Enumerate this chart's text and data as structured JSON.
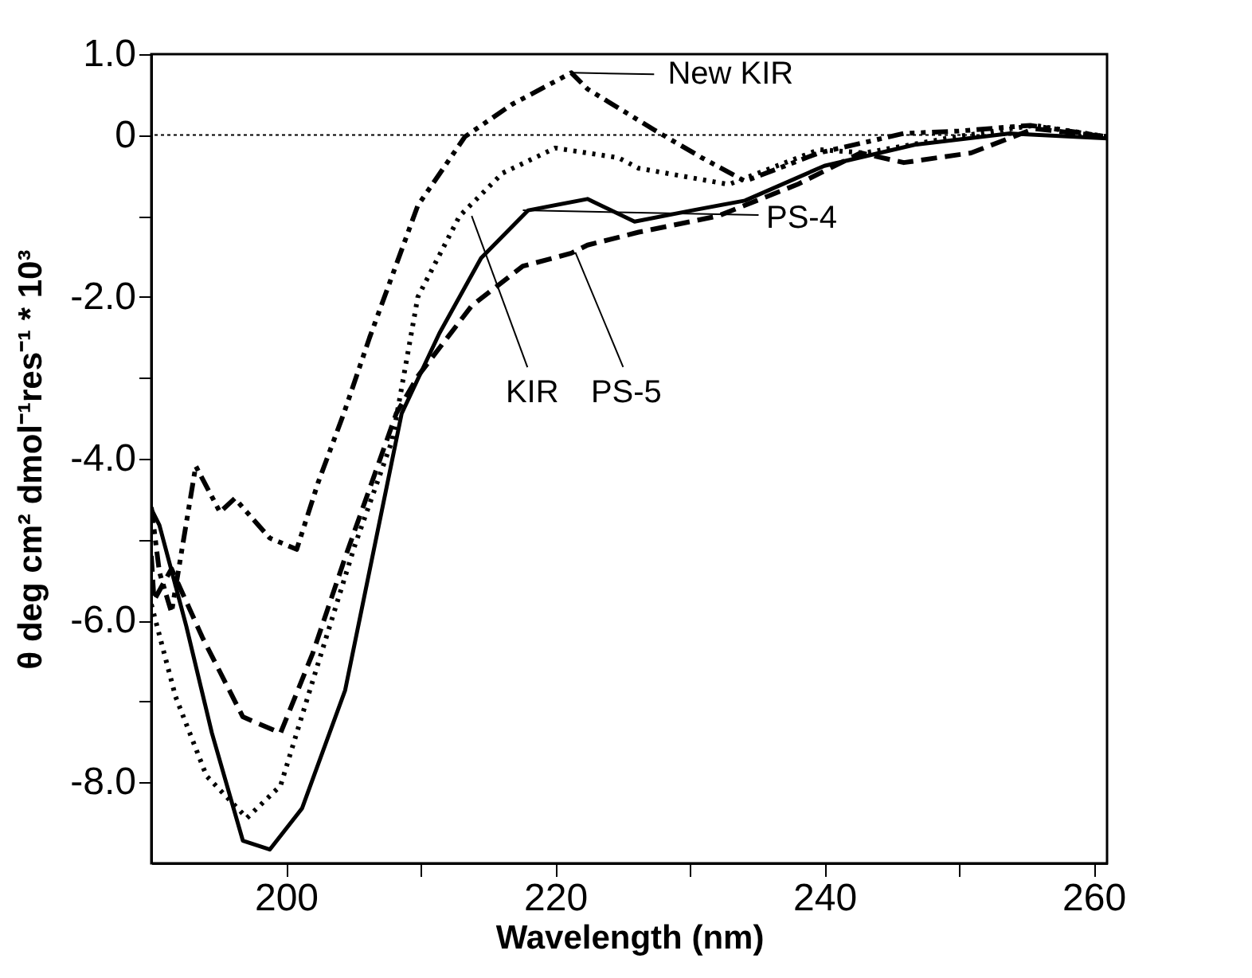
{
  "chart_data": {
    "type": "line",
    "xlabel": "Wavelength (nm)",
    "ylabel": "θ deg cm² dmol⁻¹res⁻¹ * 10³",
    "xlim": [
      190,
      261
    ],
    "ylim": [
      -9,
      1
    ],
    "xticks": [
      200,
      {
        "value": 210,
        "label": null
      },
      220,
      {
        "value": 230,
        "label": null
      },
      240,
      {
        "value": 250,
        "label": null
      },
      260
    ],
    "yticks": [
      {
        "value": 1,
        "label": "1.0"
      },
      0,
      {
        "value": -1,
        "label": null
      },
      {
        "value": -2,
        "label": "-2.0"
      },
      {
        "value": -3,
        "label": null
      },
      {
        "value": -4,
        "label": "-4.0"
      },
      {
        "value": -5,
        "label": null
      },
      {
        "value": -6,
        "label": "-6.0"
      },
      {
        "value": -7,
        "label": null
      },
      {
        "value": -8,
        "label": "-8.0"
      }
    ],
    "grid": false,
    "marker": "none",
    "ref_lines": [
      {
        "axis": "y",
        "value": 0,
        "line_style": "dotted",
        "color": "#000000"
      }
    ],
    "series": [
      {
        "color": "#000000",
        "line_style": "dashdotdot",
        "x": [
          190,
          190.6,
          191.5,
          193.3,
          195.1,
          196.2,
          198.8,
          200.8,
          202.4,
          204.3,
          206.2,
          209.8,
          213.3,
          216.8,
          221.2,
          222.4,
          227.4,
          230.9,
          234.1,
          239.6,
          245.9,
          250,
          255.3,
          261
        ],
        "values": [
          -4.6,
          -5.4,
          -5.9,
          -4.09,
          -4.66,
          -4.49,
          -4.98,
          -5.12,
          -4.29,
          -3.44,
          -2.51,
          -0.87,
          -0.02,
          0.38,
          0.77,
          0.57,
          0.06,
          -0.28,
          -0.57,
          -0.22,
          0.02,
          0.05,
          0.12,
          -0.02
        ]
      },
      {
        "color": "#000000",
        "line_style": "dotted",
        "x": [
          190,
          191.8,
          194.1,
          197.1,
          199.6,
          202,
          205.1,
          207.9,
          209.8,
          212.9,
          216.1,
          220,
          224.7,
          226.2,
          232.9,
          239.6,
          243,
          249.8,
          255.6,
          261
        ],
        "values": [
          -5.8,
          -6.94,
          -7.92,
          -8.44,
          -8.04,
          -6.74,
          -5.08,
          -3.77,
          -2.0,
          -1.0,
          -0.47,
          -0.16,
          -0.28,
          -0.41,
          -0.61,
          -0.18,
          -0.22,
          -0.02,
          0.12,
          -0.02
        ]
      },
      {
        "color": "#000000",
        "line_style": "solid",
        "x": [
          190,
          190.6,
          192.6,
          194.5,
          196.8,
          198.8,
          201.2,
          204.4,
          208.6,
          211.4,
          214.5,
          218,
          222.4,
          225.9,
          230.2,
          234.1,
          240,
          246.7,
          253.8,
          261
        ],
        "values": [
          -4.62,
          -4.82,
          -6.07,
          -7.39,
          -8.72,
          -8.83,
          -8.32,
          -6.86,
          -3.44,
          -2.45,
          -1.52,
          -0.93,
          -0.79,
          -1.07,
          -0.93,
          -0.81,
          -0.38,
          -0.12,
          0.02,
          -0.04
        ]
      },
      {
        "color": "#000000",
        "line_style": "dashed",
        "x": [
          190,
          190.2,
          191.5,
          193.8,
          196.8,
          199.6,
          202,
          204.4,
          208.2,
          209.8,
          213.8,
          217.6,
          221.2,
          222.4,
          226.2,
          232.1,
          238,
          242.7,
          245.9,
          250.9,
          255.6,
          261
        ],
        "values": [
          -5.2,
          -5.75,
          -5.36,
          -6.21,
          -7.19,
          -7.39,
          -6.4,
          -5.22,
          -3.44,
          -2.98,
          -2.11,
          -1.62,
          -1.46,
          -1.36,
          -1.2,
          -1.0,
          -0.61,
          -0.22,
          -0.34,
          -0.22,
          0.08,
          -0.02
        ]
      }
    ],
    "annotations": [
      {
        "text": "New KIR",
        "x": 221.2,
        "y": 0.77
      },
      {
        "text": "KIR",
        "x": 213.8,
        "y": -1.0
      },
      {
        "text": "PS-5",
        "x": 221.5,
        "y": -1.45
      },
      {
        "text": "PS-4",
        "x": 217.6,
        "y": -0.93
      }
    ]
  }
}
